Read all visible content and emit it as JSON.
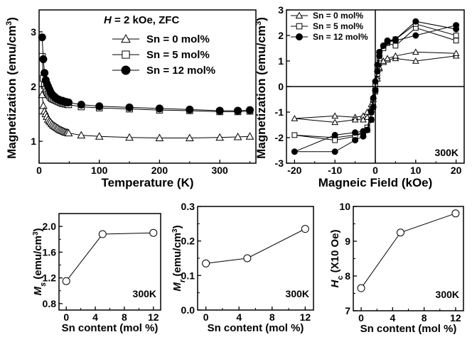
{
  "chart_data": [
    {
      "type": "line",
      "panel": "M-T",
      "xlabel": "Temperature (K)",
      "ylabel": "Magnetization (emu/cm",
      "ylabel_sup": "3",
      "ylabel_end": ")",
      "xlim": [
        0,
        360
      ],
      "ylim": [
        0.6,
        3.4
      ],
      "xticks": [
        "0",
        "100",
        "200",
        "300"
      ],
      "yticks": [
        "1",
        "2",
        "3"
      ],
      "annotation": {
        "italic": "H",
        "rest": " = 2 kOe, ZFC"
      },
      "legend_position": "top-right",
      "series": [
        {
          "name": "Sn =   0 mol%",
          "marker": "triangle",
          "x": [
            5,
            7,
            9,
            11,
            13,
            15,
            17,
            19,
            21,
            23,
            25,
            27,
            29,
            31,
            33,
            35,
            37,
            39,
            41,
            43,
            45,
            47,
            49,
            70,
            100,
            150,
            200,
            250,
            300,
            330,
            350
          ],
          "y": [
            1.85,
            1.65,
            1.55,
            1.5,
            1.45,
            1.4,
            1.37,
            1.35,
            1.32,
            1.3,
            1.28,
            1.27,
            1.25,
            1.24,
            1.22,
            1.21,
            1.2,
            1.19,
            1.18,
            1.17,
            1.16,
            1.16,
            1.15,
            1.11,
            1.09,
            1.07,
            1.06,
            1.06,
            1.07,
            1.08,
            1.09
          ]
        },
        {
          "name": "Sn =   5 mol%",
          "marker": "square",
          "x": [
            5,
            7,
            9,
            11,
            13,
            15,
            17,
            19,
            21,
            23,
            25,
            27,
            29,
            31,
            33,
            35,
            37,
            39,
            41,
            43,
            45,
            47,
            49,
            70,
            100,
            150,
            200,
            250,
            300,
            330,
            350
          ],
          "y": [
            2.55,
            2.15,
            2.02,
            1.95,
            1.9,
            1.86,
            1.83,
            1.8,
            1.78,
            1.77,
            1.76,
            1.75,
            1.74,
            1.73,
            1.72,
            1.71,
            1.7,
            1.69,
            1.69,
            1.68,
            1.68,
            1.67,
            1.67,
            1.63,
            1.61,
            1.59,
            1.57,
            1.56,
            1.54,
            1.54,
            1.55
          ]
        },
        {
          "name": "Sn = 12 mol%",
          "marker": "circle",
          "x": [
            5,
            7,
            9,
            11,
            13,
            15,
            17,
            19,
            21,
            23,
            25,
            27,
            29,
            31,
            33,
            35,
            37,
            39,
            41,
            43,
            45,
            47,
            49,
            70,
            100,
            150,
            200,
            250,
            300,
            330,
            350
          ],
          "y": [
            2.9,
            2.5,
            2.25,
            2.12,
            2.05,
            2.0,
            1.95,
            1.9,
            1.86,
            1.84,
            1.82,
            1.8,
            1.78,
            1.77,
            1.76,
            1.75,
            1.74,
            1.74,
            1.73,
            1.72,
            1.72,
            1.71,
            1.71,
            1.67,
            1.64,
            1.62,
            1.6,
            1.58,
            1.56,
            1.56,
            1.57
          ]
        }
      ]
    },
    {
      "type": "line",
      "panel": "M-H",
      "xlabel": "Magneic Field (kOe)",
      "ylabel": "Magnetization (emu/cm",
      "ylabel_sup": "3",
      "ylabel_end": ")",
      "xlim": [
        -22,
        22
      ],
      "ylim": [
        -3,
        3
      ],
      "xticks": [
        "-20",
        "-10",
        "0",
        "10",
        "20"
      ],
      "yticks": [
        "-3",
        "-2",
        "-1",
        "0",
        "1",
        "2",
        "3"
      ],
      "annotation": "300K",
      "legend_position": "top-left",
      "series": [
        {
          "name": "Sn =   0 mol%",
          "marker": "triangle",
          "x": [
            20,
            10,
            5,
            3,
            2,
            1,
            0.5,
            0,
            -0.5,
            -1,
            -2,
            -3,
            -5,
            -10,
            -20,
            -10,
            -5,
            -3,
            -2,
            -1,
            -0.5,
            0,
            0.5,
            1,
            2,
            3,
            5,
            10,
            20
          ],
          "y": [
            1.2,
            1.0,
            1.1,
            1.05,
            0.95,
            0.7,
            0.4,
            0.0,
            -0.4,
            -0.7,
            -1.0,
            -1.15,
            -1.2,
            -1.15,
            -1.25,
            -1.4,
            -1.3,
            -1.3,
            -1.2,
            -0.9,
            -0.5,
            -0.1,
            0.3,
            0.75,
            1.0,
            1.1,
            1.2,
            1.35,
            1.3
          ]
        },
        {
          "name": "Sn =   5 mol%",
          "marker": "square",
          "x": [
            20,
            10,
            5,
            3,
            2,
            1,
            0.5,
            0,
            -0.5,
            -1,
            -2,
            -3,
            -5,
            -10,
            -20,
            -10,
            -5,
            -3,
            -2,
            -1,
            -0.5,
            0,
            0.5,
            1,
            2,
            3,
            5,
            10,
            20
          ],
          "y": [
            1.8,
            2.3,
            1.6,
            1.7,
            1.55,
            1.3,
            0.8,
            0.1,
            -0.5,
            -1.0,
            -1.6,
            -1.8,
            -1.9,
            -2.0,
            -1.9,
            -2.1,
            -1.95,
            -1.8,
            -1.7,
            -1.3,
            -0.8,
            -0.2,
            0.5,
            1.1,
            1.5,
            1.75,
            1.85,
            2.45,
            2.0
          ]
        },
        {
          "name": "Sn = 12 mol%",
          "marker": "circle",
          "x": [
            20,
            10,
            5,
            3,
            2,
            1,
            0.5,
            0,
            -0.5,
            -1,
            -2,
            -3,
            -5,
            -10,
            -20,
            -10,
            -5,
            -3,
            -2,
            -1,
            -0.5,
            0,
            0.5,
            1,
            2,
            3,
            5,
            10,
            20
          ],
          "y": [
            2.4,
            2.0,
            1.8,
            1.75,
            1.6,
            1.35,
            0.85,
            0.2,
            -0.45,
            -1.0,
            -1.7,
            -1.95,
            -2.1,
            -2.55,
            -2.55,
            -1.9,
            -1.8,
            -1.75,
            -1.7,
            -1.3,
            -0.8,
            -0.15,
            0.6,
            1.2,
            1.6,
            1.8,
            1.85,
            2.55,
            2.25
          ]
        }
      ]
    },
    {
      "type": "line",
      "panel": "Ms",
      "xlabel": "Sn content (mol %)",
      "ylabel_main": "M",
      "ylabel_sub": "s",
      "ylabel_rest": " (emu/cm",
      "ylabel_sup": "3",
      "ylabel_end": ")",
      "xlim": [
        -1,
        13
      ],
      "ylim": [
        0.7,
        2.2
      ],
      "xticks": [
        "0",
        "4",
        "8",
        "12"
      ],
      "yticks": [
        "0.8",
        "1.2",
        "1.6",
        "2.0"
      ],
      "annotation": "300K",
      "x": [
        0,
        5,
        12
      ],
      "y": [
        1.15,
        1.88,
        1.9
      ]
    },
    {
      "type": "line",
      "panel": "Mr",
      "xlabel": "Sn content (mol %)",
      "ylabel_main": "M",
      "ylabel_sub": "r",
      "ylabel_rest": " (emu/cm",
      "ylabel_sup": "3",
      "ylabel_end": ")",
      "xlim": [
        -1,
        13
      ],
      "ylim": [
        0.0,
        0.3
      ],
      "xticks": [
        "0",
        "4",
        "8",
        "12"
      ],
      "yticks": [
        "0.0",
        "0.1",
        "0.2",
        "0.3"
      ],
      "annotation": "300K",
      "x": [
        0,
        5,
        12
      ],
      "y": [
        0.135,
        0.15,
        0.235
      ]
    },
    {
      "type": "line",
      "panel": "Hc",
      "xlabel": "Sn content (mol %)",
      "ylabel_main": "H",
      "ylabel_sub": "c",
      "ylabel_rest": " (X10 Oe)",
      "xlim": [
        -1,
        13
      ],
      "ylim": [
        7,
        10
      ],
      "xticks": [
        "0",
        "4",
        "8",
        "12"
      ],
      "yticks": [
        "7",
        "8",
        "9",
        "10"
      ],
      "annotation": "300K",
      "x": [
        0,
        5,
        12
      ],
      "y": [
        7.65,
        9.25,
        9.8
      ]
    }
  ]
}
